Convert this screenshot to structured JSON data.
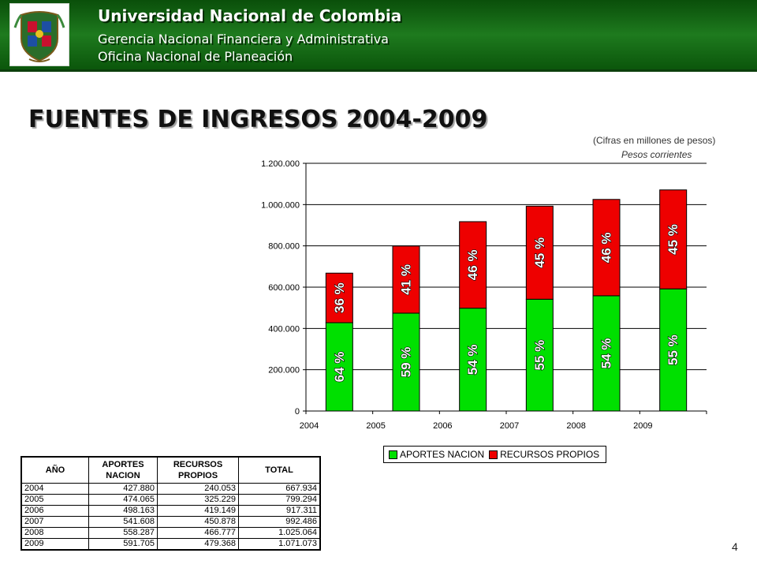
{
  "header": {
    "title": "Universidad Nacional de Colombia",
    "subtitle1": "Gerencia Nacional Financiera y Administrativa",
    "subtitle2": "Oficina Nacional de Planeación",
    "logo_icon": "university-shield-icon",
    "bg_color": "#1e7a1e"
  },
  "page": {
    "title": "FUENTES DE INGRESOS 2004-2009",
    "note_units": "(Cifras en millones de pesos)",
    "note_prices": "Pesos corrientes",
    "page_number": "4"
  },
  "chart_data": {
    "type": "bar",
    "stacked": true,
    "categories": [
      "2004",
      "2005",
      "2006",
      "2007",
      "2008",
      "2009"
    ],
    "series": [
      {
        "name": "APORTES NACION",
        "color": "#00e000",
        "values": [
          427880,
          474065,
          498163,
          541608,
          558287,
          591705
        ],
        "labels": [
          "64 %",
          "59 %",
          "54 %",
          "55 %",
          "54 %",
          "55 %"
        ]
      },
      {
        "name": "RECURSOS PROPIOS",
        "color": "#ee0000",
        "values": [
          240053,
          325229,
          419149,
          450878,
          466777,
          479368
        ],
        "labels": [
          "36 %",
          "41 %",
          "46 %",
          "45 %",
          "46 %",
          "45 %"
        ]
      }
    ],
    "ylim": [
      0,
      1200000
    ],
    "yticks": [
      0,
      200000,
      400000,
      600000,
      800000,
      1000000,
      1200000
    ],
    "ytick_labels": [
      "0",
      "200.000",
      "400.000",
      "600.000",
      "800.000",
      "1.000.000",
      "1.200.000"
    ],
    "grid": true,
    "legend_position": "bottom"
  },
  "table": {
    "headers": [
      "AÑO",
      "APORTES NACION",
      "RECURSOS PROPIOS",
      "TOTAL"
    ],
    "rows": [
      [
        "2004",
        "427.880",
        "240.053",
        "667.934"
      ],
      [
        "2005",
        "474.065",
        "325.229",
        "799.294"
      ],
      [
        "2006",
        "498.163",
        "419.149",
        "917.311"
      ],
      [
        "2007",
        "541.608",
        "450.878",
        "992.486"
      ],
      [
        "2008",
        "558.287",
        "466.777",
        "1.025.064"
      ],
      [
        "2009",
        "591.705",
        "479.368",
        "1.071.073"
      ]
    ]
  }
}
